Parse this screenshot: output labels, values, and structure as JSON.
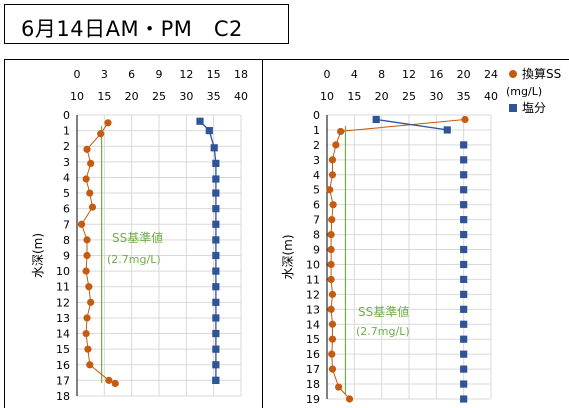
{
  "page_title": "6月14日AM・PM　C2",
  "colors": {
    "ss": "#C55A11",
    "salinity": "#2F5597",
    "threshold": "#70AD47",
    "grid": "#D9D9D9",
    "axis": "#000000",
    "text": "#000000"
  },
  "chart_data": [
    {
      "type": "scatter",
      "y_label": "水深(m)",
      "y_ticks": [
        "0",
        "1",
        "2",
        "3",
        "4",
        "5",
        "6",
        "7",
        "8",
        "9",
        "10",
        "11",
        "12",
        "13",
        "14",
        "15",
        "16",
        "17",
        "18"
      ],
      "ylim": [
        0,
        18
      ],
      "y_reversed": true,
      "x_top_ticks": [
        "0",
        "3",
        "6",
        "9",
        "12",
        "15",
        "18"
      ],
      "x_top_lim": [
        0,
        18
      ],
      "x_bottom_ticks": [
        "10",
        "15",
        "20",
        "25",
        "30",
        "35",
        "40"
      ],
      "x_bottom_lim": [
        10,
        40
      ],
      "grid": true,
      "threshold_label_1": "SS基準値",
      "threshold_label_2": "(2.7mg/L)",
      "series": [
        {
          "axis": "top",
          "depth": [
            0.5,
            1.2,
            2.2,
            3.1,
            4.1,
            5.0,
            5.9,
            7.0,
            8.0,
            9.0,
            10.0,
            11.0,
            12.0,
            13.0,
            14.0,
            15.0,
            16.0,
            17.0,
            17.2
          ],
          "values": [
            3.4,
            2.6,
            1.1,
            1.5,
            1.0,
            1.4,
            1.7,
            0.5,
            1.1,
            1.1,
            1.0,
            1.3,
            1.5,
            1.1,
            1.0,
            1.2,
            1.4,
            3.5,
            4.2
          ]
        },
        {
          "axis": "bottom",
          "depth": [
            0.4,
            1.0,
            2.1,
            3.1,
            4.1,
            5.0,
            6.0,
            7.0,
            8.0,
            9.0,
            10.0,
            11.0,
            12.0,
            13.0,
            14.0,
            15.0,
            16.0,
            17.0,
            17.0
          ],
          "values": [
            32.5,
            34.2,
            35.1,
            35.4,
            35.4,
            35.4,
            35.4,
            35.4,
            35.4,
            35.4,
            35.4,
            35.4,
            35.4,
            35.4,
            35.4,
            35.4,
            35.4,
            35.4,
            35.4
          ]
        }
      ],
      "threshold_value": 2.7
    },
    {
      "type": "scatter",
      "y_label": "水深(m)",
      "y_ticks": [
        "0",
        "1",
        "2",
        "3",
        "4",
        "5",
        "6",
        "7",
        "8",
        "9",
        "10",
        "11",
        "12",
        "13",
        "14",
        "15",
        "16",
        "17",
        "18",
        "19"
      ],
      "ylim": [
        0,
        19
      ],
      "y_reversed": true,
      "x_top_ticks": [
        "0",
        "4",
        "8",
        "12",
        "16",
        "20",
        "24"
      ],
      "x_top_lim": [
        0,
        24
      ],
      "x_bottom_ticks": [
        "10",
        "15",
        "20",
        "25",
        "30",
        "35",
        "40"
      ],
      "x_bottom_lim": [
        10,
        40
      ],
      "grid": true,
      "threshold_label_1": "SS基準値",
      "threshold_label_2": "(2.7mg/L)",
      "legend": {
        "ss_label": "換算SS",
        "ss_unit": "(mg/L)",
        "salinity_label": "塩分"
      },
      "series": [
        {
          "axis": "top",
          "depth": [
            0.3,
            1.1,
            2.0,
            3.0,
            4.0,
            5.0,
            6.0,
            7.0,
            8.0,
            9.0,
            10.0,
            11.0,
            12.0,
            13.0,
            14.0,
            15.0,
            16.0,
            17.0,
            18.2,
            19.0
          ],
          "values": [
            20.2,
            2.0,
            1.3,
            0.8,
            0.8,
            0.4,
            0.9,
            0.7,
            0.6,
            0.6,
            0.6,
            0.6,
            0.8,
            0.6,
            0.8,
            0.8,
            0.7,
            0.8,
            1.7,
            3.3
          ]
        },
        {
          "axis": "bottom",
          "depth": [
            0.3,
            1.0,
            2.0,
            3.0,
            4.0,
            5.0,
            6.0,
            7.0,
            8.0,
            9.0,
            10.0,
            11.0,
            12.0,
            13.0,
            14.0,
            15.0,
            16.0,
            17.0,
            18.0,
            19.0
          ],
          "values": [
            19.0,
            32.0,
            35.0,
            35.0,
            35.0,
            35.0,
            35.0,
            35.0,
            35.0,
            35.0,
            35.0,
            35.0,
            35.0,
            35.0,
            35.0,
            35.0,
            35.0,
            35.0,
            35.0,
            35.0
          ],
          "connect_until": 2
        }
      ],
      "threshold_value": 2.7
    }
  ]
}
